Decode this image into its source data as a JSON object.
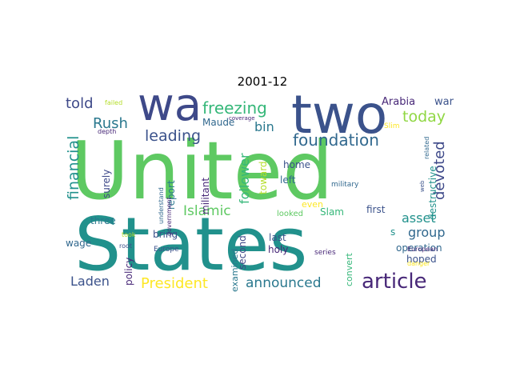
{
  "chart_data": {
    "type": "wordcloud",
    "title": "2001-12",
    "words": [
      {
        "text": "United",
        "color": "#5ec962"
      },
      {
        "text": "States",
        "color": "#21918c"
      },
      {
        "text": "two",
        "color": "#3b528b"
      },
      {
        "text": "wa",
        "color": "#3e4989"
      },
      {
        "text": "article",
        "color": "#482878"
      },
      {
        "text": "freezing",
        "color": "#35b779"
      },
      {
        "text": "foundation",
        "color": "#31688e"
      },
      {
        "text": "today",
        "color": "#90d743"
      },
      {
        "text": "told",
        "color": "#3e4989"
      },
      {
        "text": "Rush",
        "color": "#2a788e"
      },
      {
        "text": "leading",
        "color": "#3b528b"
      },
      {
        "text": "financial",
        "color": "#21918c"
      },
      {
        "text": "devoted",
        "color": "#3e4989"
      },
      {
        "text": "President",
        "color": "#fde725"
      },
      {
        "text": "announced",
        "color": "#2a788e"
      },
      {
        "text": "Laden",
        "color": "#3b528b"
      },
      {
        "text": "asset",
        "color": "#21918c"
      },
      {
        "text": "group",
        "color": "#31688e"
      },
      {
        "text": "Islamic",
        "color": "#5ec962"
      },
      {
        "text": "bin",
        "color": "#2a788e"
      },
      {
        "text": "follower",
        "color": "#35b779"
      },
      {
        "text": "Arabia",
        "color": "#482878"
      },
      {
        "text": "war",
        "color": "#3b528b"
      },
      {
        "text": "Maude",
        "color": "#31688e"
      },
      {
        "text": "surely",
        "color": "#3e4989"
      },
      {
        "text": "report",
        "color": "#2a788e"
      },
      {
        "text": "militant",
        "color": "#482878"
      },
      {
        "text": "toward",
        "color": "#b5de2b"
      },
      {
        "text": "home",
        "color": "#3b528b"
      },
      {
        "text": "left",
        "color": "#31688e"
      },
      {
        "text": "destructive",
        "color": "#21918c"
      },
      {
        "text": "three",
        "color": "#2a788e"
      },
      {
        "text": "bring",
        "color": "#3b528b"
      },
      {
        "text": "policy",
        "color": "#482878"
      },
      {
        "text": "wage",
        "color": "#31688e"
      },
      {
        "text": "second",
        "color": "#3e4989"
      },
      {
        "text": "examined",
        "color": "#2a788e"
      },
      {
        "text": "last",
        "color": "#3b528b"
      },
      {
        "text": "holy",
        "color": "#482878"
      },
      {
        "text": "even",
        "color": "#fde725"
      },
      {
        "text": "Slam",
        "color": "#35b779"
      },
      {
        "text": "first",
        "color": "#3b528b"
      },
      {
        "text": "convert",
        "color": "#35b779"
      },
      {
        "text": "operation",
        "color": "#31688e"
      },
      {
        "text": "hoped",
        "color": "#3b528b"
      },
      {
        "text": "looked",
        "color": "#5ec962"
      },
      {
        "text": "military",
        "color": "#31688e"
      },
      {
        "text": "Europe",
        "color": "#3b528b"
      },
      {
        "text": "government",
        "color": "#482878"
      },
      {
        "text": "understand",
        "color": "#31688e"
      },
      {
        "text": "took",
        "color": "#b5de2b"
      },
      {
        "text": "root",
        "color": "#3b528b"
      },
      {
        "text": "depth",
        "color": "#482878"
      },
      {
        "text": "failed",
        "color": "#b5de2b"
      },
      {
        "text": "coverage",
        "color": "#482878"
      },
      {
        "text": "Slim",
        "color": "#fde725"
      },
      {
        "text": "related",
        "color": "#31688e"
      },
      {
        "text": "web",
        "color": "#3b528b"
      },
      {
        "text": "European",
        "color": "#482878"
      },
      {
        "text": "danger",
        "color": "#fde725"
      },
      {
        "text": "series",
        "color": "#482878"
      },
      {
        "text": "s",
        "color": "#21918c"
      }
    ]
  }
}
